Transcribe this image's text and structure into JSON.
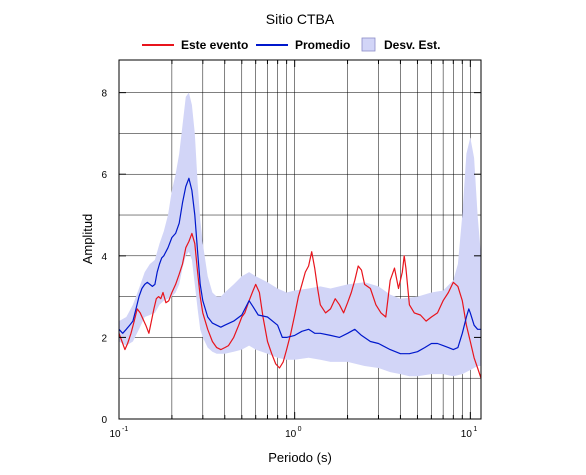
{
  "chart_data": {
    "type": "line",
    "title": "Sitio CTBA",
    "xlabel": "Periodo (s)",
    "ylabel": "Amplitud",
    "x_scale": "log",
    "xlim": [
      0.1,
      11.5
    ],
    "ylim": [
      0,
      8.8
    ],
    "grid": true,
    "legend_position": "top",
    "x_ticks": [
      {
        "base": "10",
        "exp": "-1",
        "value": 0.1
      },
      {
        "base": "10",
        "exp": "0",
        "value": 1
      },
      {
        "base": "10",
        "exp": "1",
        "value": 10
      }
    ],
    "y_ticks": [
      {
        "label": "0",
        "value": 0
      },
      {
        "label": "2",
        "value": 2
      },
      {
        "label": "4",
        "value": 4
      },
      {
        "label": "6",
        "value": 6
      },
      {
        "label": "8",
        "value": 8
      }
    ],
    "colors": {
      "este_evento": "#e8141c",
      "promedio": "#0018cc",
      "desv": "#d2d5f7",
      "desv_border": "#8c8cc8"
    },
    "series": [
      {
        "name": "Este evento",
        "kind": "line",
        "points": [
          [
            0.1,
            2.1
          ],
          [
            0.104,
            1.9
          ],
          [
            0.108,
            1.7
          ],
          [
            0.112,
            1.85
          ],
          [
            0.117,
            2.1
          ],
          [
            0.122,
            2.4
          ],
          [
            0.127,
            2.7
          ],
          [
            0.132,
            2.6
          ],
          [
            0.137,
            2.45
          ],
          [
            0.142,
            2.3
          ],
          [
            0.148,
            2.1
          ],
          [
            0.153,
            2.4
          ],
          [
            0.158,
            2.7
          ],
          [
            0.163,
            2.95
          ],
          [
            0.168,
            3.0
          ],
          [
            0.173,
            2.95
          ],
          [
            0.178,
            3.1
          ],
          [
            0.185,
            2.85
          ],
          [
            0.192,
            2.9
          ],
          [
            0.2,
            3.1
          ],
          [
            0.21,
            3.3
          ],
          [
            0.22,
            3.55
          ],
          [
            0.23,
            3.8
          ],
          [
            0.24,
            4.2
          ],
          [
            0.25,
            4.35
          ],
          [
            0.26,
            4.55
          ],
          [
            0.27,
            4.3
          ],
          [
            0.28,
            3.6
          ],
          [
            0.29,
            3.0
          ],
          [
            0.3,
            2.6
          ],
          [
            0.32,
            2.2
          ],
          [
            0.34,
            1.9
          ],
          [
            0.36,
            1.75
          ],
          [
            0.38,
            1.7
          ],
          [
            0.4,
            1.75
          ],
          [
            0.42,
            1.8
          ],
          [
            0.45,
            2.0
          ],
          [
            0.48,
            2.3
          ],
          [
            0.5,
            2.5
          ],
          [
            0.52,
            2.6
          ],
          [
            0.55,
            2.9
          ],
          [
            0.58,
            3.15
          ],
          [
            0.6,
            3.3
          ],
          [
            0.63,
            3.1
          ],
          [
            0.66,
            2.5
          ],
          [
            0.7,
            1.9
          ],
          [
            0.74,
            1.6
          ],
          [
            0.78,
            1.35
          ],
          [
            0.82,
            1.25
          ],
          [
            0.86,
            1.4
          ],
          [
            0.9,
            1.7
          ],
          [
            0.95,
            2.1
          ],
          [
            1.0,
            2.55
          ],
          [
            1.05,
            3.0
          ],
          [
            1.1,
            3.3
          ],
          [
            1.15,
            3.6
          ],
          [
            1.2,
            3.75
          ],
          [
            1.25,
            4.1
          ],
          [
            1.3,
            3.7
          ],
          [
            1.35,
            3.2
          ],
          [
            1.4,
            2.8
          ],
          [
            1.5,
            2.6
          ],
          [
            1.6,
            2.7
          ],
          [
            1.7,
            2.95
          ],
          [
            1.8,
            2.8
          ],
          [
            1.9,
            2.6
          ],
          [
            2.0,
            2.85
          ],
          [
            2.1,
            3.1
          ],
          [
            2.2,
            3.4
          ],
          [
            2.3,
            3.75
          ],
          [
            2.4,
            3.65
          ],
          [
            2.5,
            3.3
          ],
          [
            2.7,
            3.2
          ],
          [
            2.9,
            2.8
          ],
          [
            3.1,
            2.6
          ],
          [
            3.3,
            2.5
          ],
          [
            3.5,
            3.4
          ],
          [
            3.7,
            3.7
          ],
          [
            3.9,
            3.2
          ],
          [
            4.1,
            3.6
          ],
          [
            4.2,
            4.0
          ],
          [
            4.3,
            3.7
          ],
          [
            4.5,
            2.8
          ],
          [
            4.8,
            2.6
          ],
          [
            5.2,
            2.55
          ],
          [
            5.6,
            2.4
          ],
          [
            6.0,
            2.5
          ],
          [
            6.5,
            2.6
          ],
          [
            7.0,
            2.9
          ],
          [
            7.5,
            3.1
          ],
          [
            8.0,
            3.35
          ],
          [
            8.5,
            3.25
          ],
          [
            9.0,
            2.9
          ],
          [
            9.5,
            2.3
          ],
          [
            10.0,
            1.9
          ],
          [
            10.5,
            1.5
          ],
          [
            11.0,
            1.25
          ],
          [
            11.5,
            1.0
          ]
        ]
      },
      {
        "name": "Promedio",
        "kind": "line",
        "points": [
          [
            0.1,
            2.2
          ],
          [
            0.105,
            2.1
          ],
          [
            0.11,
            2.2
          ],
          [
            0.115,
            2.3
          ],
          [
            0.12,
            2.4
          ],
          [
            0.125,
            2.7
          ],
          [
            0.13,
            3.0
          ],
          [
            0.135,
            3.2
          ],
          [
            0.14,
            3.3
          ],
          [
            0.145,
            3.35
          ],
          [
            0.15,
            3.3
          ],
          [
            0.155,
            3.25
          ],
          [
            0.16,
            3.3
          ],
          [
            0.165,
            3.6
          ],
          [
            0.17,
            3.8
          ],
          [
            0.175,
            3.95
          ],
          [
            0.18,
            4.0
          ],
          [
            0.19,
            4.2
          ],
          [
            0.2,
            4.45
          ],
          [
            0.21,
            4.55
          ],
          [
            0.22,
            4.8
          ],
          [
            0.23,
            5.3
          ],
          [
            0.24,
            5.7
          ],
          [
            0.25,
            5.9
          ],
          [
            0.26,
            5.6
          ],
          [
            0.27,
            5.0
          ],
          [
            0.28,
            4.1
          ],
          [
            0.29,
            3.3
          ],
          [
            0.3,
            2.9
          ],
          [
            0.32,
            2.5
          ],
          [
            0.34,
            2.35
          ],
          [
            0.36,
            2.3
          ],
          [
            0.38,
            2.25
          ],
          [
            0.4,
            2.3
          ],
          [
            0.45,
            2.4
          ],
          [
            0.5,
            2.55
          ],
          [
            0.55,
            2.9
          ],
          [
            0.58,
            2.75
          ],
          [
            0.62,
            2.55
          ],
          [
            0.7,
            2.5
          ],
          [
            0.8,
            2.3
          ],
          [
            0.85,
            2.0
          ],
          [
            0.9,
            2.0
          ],
          [
            1.0,
            2.05
          ],
          [
            1.1,
            2.15
          ],
          [
            1.2,
            2.2
          ],
          [
            1.3,
            2.1
          ],
          [
            1.4,
            2.1
          ],
          [
            1.6,
            2.05
          ],
          [
            1.8,
            2.0
          ],
          [
            2.0,
            2.1
          ],
          [
            2.2,
            2.2
          ],
          [
            2.4,
            2.05
          ],
          [
            2.7,
            1.9
          ],
          [
            3.0,
            1.85
          ],
          [
            3.5,
            1.7
          ],
          [
            4.0,
            1.6
          ],
          [
            4.5,
            1.6
          ],
          [
            5.0,
            1.65
          ],
          [
            5.5,
            1.75
          ],
          [
            6.0,
            1.85
          ],
          [
            6.5,
            1.85
          ],
          [
            7.0,
            1.8
          ],
          [
            7.5,
            1.75
          ],
          [
            8.0,
            1.7
          ],
          [
            8.5,
            1.75
          ],
          [
            9.0,
            2.1
          ],
          [
            9.5,
            2.5
          ],
          [
            9.8,
            2.7
          ],
          [
            10.0,
            2.6
          ],
          [
            10.5,
            2.3
          ],
          [
            11.0,
            2.2
          ],
          [
            11.5,
            2.2
          ]
        ]
      },
      {
        "name": "Desv. Est.",
        "kind": "band",
        "upper": [
          [
            0.1,
            2.4
          ],
          [
            0.11,
            2.5
          ],
          [
            0.12,
            2.8
          ],
          [
            0.13,
            3.2
          ],
          [
            0.14,
            3.6
          ],
          [
            0.15,
            3.8
          ],
          [
            0.16,
            3.9
          ],
          [
            0.17,
            4.3
          ],
          [
            0.18,
            4.6
          ],
          [
            0.19,
            5.0
          ],
          [
            0.2,
            5.6
          ],
          [
            0.21,
            6.0
          ],
          [
            0.22,
            6.5
          ],
          [
            0.23,
            7.2
          ],
          [
            0.24,
            7.9
          ],
          [
            0.25,
            8.0
          ],
          [
            0.26,
            7.7
          ],
          [
            0.27,
            7.0
          ],
          [
            0.28,
            5.8
          ],
          [
            0.29,
            4.9
          ],
          [
            0.3,
            4.3
          ],
          [
            0.32,
            3.5
          ],
          [
            0.34,
            3.1
          ],
          [
            0.36,
            3.0
          ],
          [
            0.38,
            3.0
          ],
          [
            0.4,
            3.1
          ],
          [
            0.45,
            3.3
          ],
          [
            0.5,
            3.5
          ],
          [
            0.55,
            3.6
          ],
          [
            0.6,
            3.5
          ],
          [
            0.7,
            3.35
          ],
          [
            0.8,
            3.2
          ],
          [
            0.9,
            3.1
          ],
          [
            1.0,
            3.15
          ],
          [
            1.2,
            3.2
          ],
          [
            1.4,
            3.25
          ],
          [
            1.6,
            3.2
          ],
          [
            2.0,
            3.3
          ],
          [
            2.5,
            3.35
          ],
          [
            3.0,
            3.25
          ],
          [
            3.5,
            3.05
          ],
          [
            4.0,
            2.95
          ],
          [
            5.0,
            3.0
          ],
          [
            6.0,
            3.1
          ],
          [
            7.0,
            3.15
          ],
          [
            8.0,
            3.4
          ],
          [
            8.5,
            3.8
          ],
          [
            9.0,
            5.0
          ],
          [
            9.5,
            6.5
          ],
          [
            10.0,
            6.9
          ],
          [
            10.5,
            6.4
          ],
          [
            11.0,
            5.0
          ],
          [
            11.5,
            4.0
          ]
        ],
        "lower": [
          [
            0.1,
            1.9
          ],
          [
            0.11,
            1.8
          ],
          [
            0.12,
            1.9
          ],
          [
            0.13,
            2.2
          ],
          [
            0.14,
            2.5
          ],
          [
            0.15,
            2.55
          ],
          [
            0.16,
            2.6
          ],
          [
            0.17,
            2.8
          ],
          [
            0.18,
            2.9
          ],
          [
            0.19,
            2.95
          ],
          [
            0.2,
            3.0
          ],
          [
            0.21,
            3.1
          ],
          [
            0.22,
            3.3
          ],
          [
            0.23,
            3.7
          ],
          [
            0.24,
            4.0
          ],
          [
            0.25,
            4.1
          ],
          [
            0.26,
            3.9
          ],
          [
            0.27,
            3.3
          ],
          [
            0.28,
            2.7
          ],
          [
            0.29,
            2.2
          ],
          [
            0.3,
            2.0
          ],
          [
            0.32,
            1.75
          ],
          [
            0.34,
            1.65
          ],
          [
            0.36,
            1.6
          ],
          [
            0.38,
            1.6
          ],
          [
            0.4,
            1.6
          ],
          [
            0.45,
            1.65
          ],
          [
            0.5,
            1.7
          ],
          [
            0.55,
            1.8
          ],
          [
            0.6,
            1.7
          ],
          [
            0.7,
            1.6
          ],
          [
            0.8,
            1.5
          ],
          [
            0.9,
            1.45
          ],
          [
            1.0,
            1.45
          ],
          [
            1.2,
            1.5
          ],
          [
            1.4,
            1.45
          ],
          [
            1.6,
            1.4
          ],
          [
            2.0,
            1.4
          ],
          [
            2.5,
            1.3
          ],
          [
            3.0,
            1.25
          ],
          [
            3.5,
            1.15
          ],
          [
            4.0,
            1.1
          ],
          [
            4.5,
            1.05
          ],
          [
            5.0,
            1.05
          ],
          [
            6.0,
            1.1
          ],
          [
            7.0,
            1.1
          ],
          [
            8.0,
            1.05
          ],
          [
            9.0,
            1.1
          ],
          [
            10.0,
            1.2
          ],
          [
            11.0,
            1.3
          ],
          [
            11.5,
            1.3
          ]
        ]
      }
    ]
  }
}
